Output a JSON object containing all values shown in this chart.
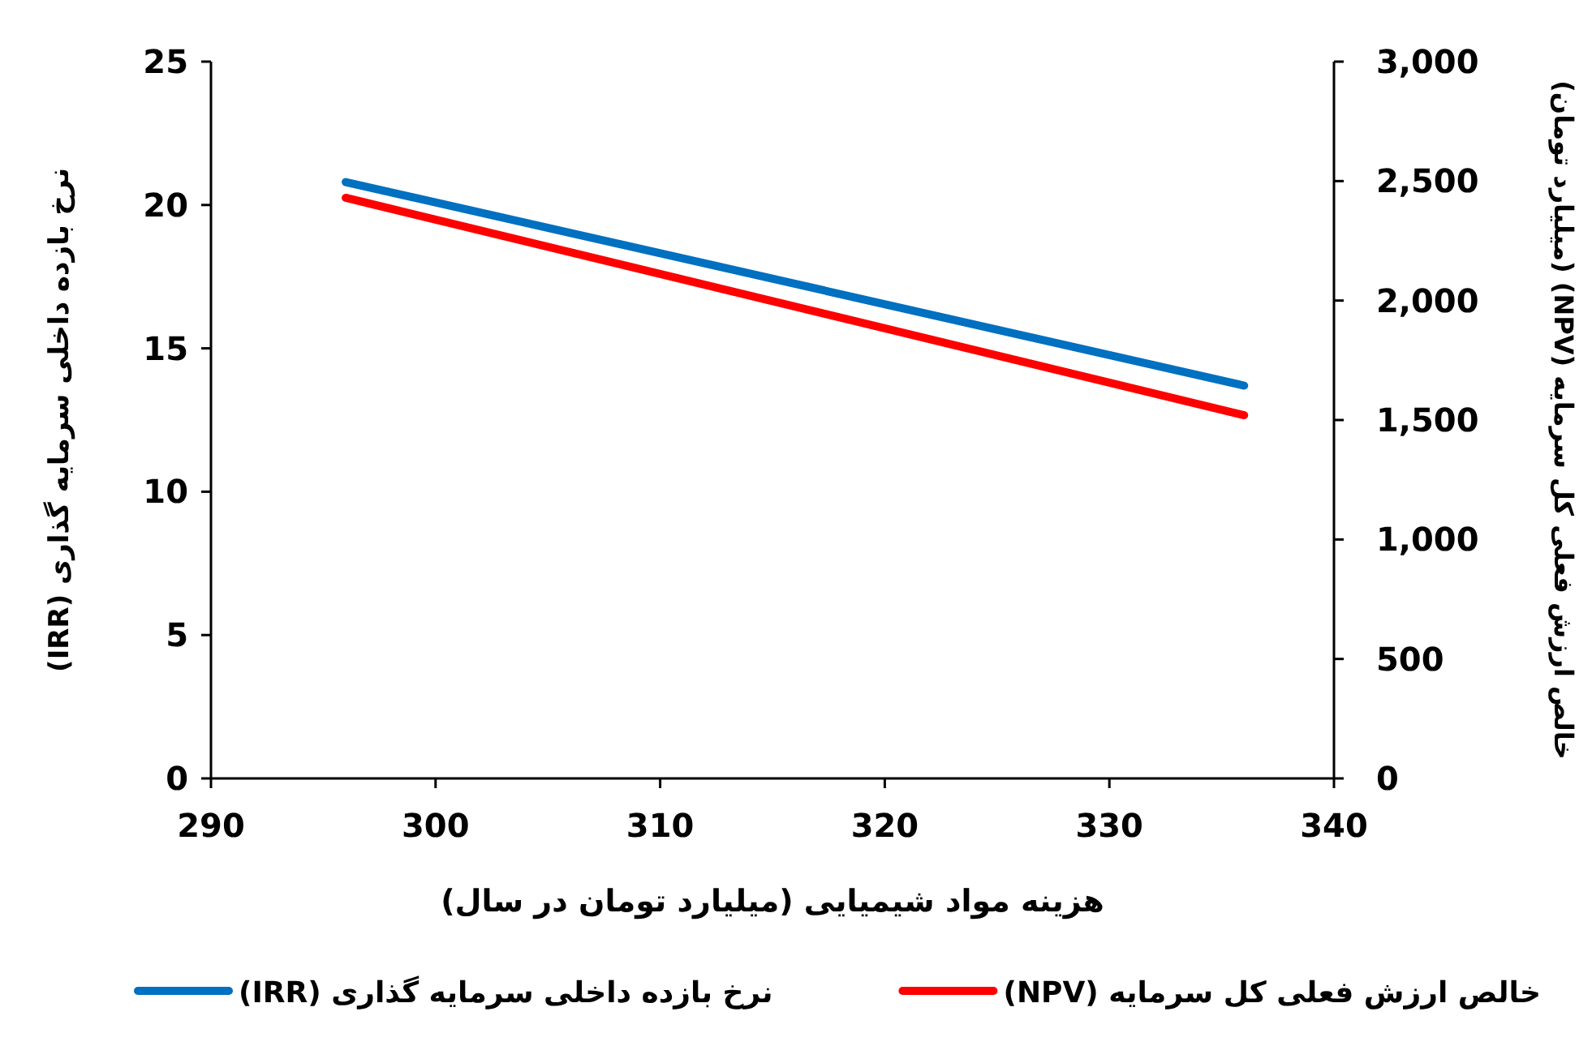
{
  "chart_data": {
    "type": "line",
    "xlabel": "هزینه مواد شیمیایی (میلیارد تومان در سال)",
    "ylabel": "نرخ بازده داخلی سرمایه گذاری (IRR)",
    "y2label": "خالص ارزش فعلی کل سرمایه (NPV) (میلیارد تومان)",
    "xlim": [
      290,
      340
    ],
    "xticks": [
      290,
      300,
      310,
      320,
      330,
      340
    ],
    "ylim": [
      0,
      25
    ],
    "yticks": [
      0,
      5,
      10,
      15,
      20,
      25
    ],
    "y2lim": [
      0,
      3000
    ],
    "y2ticks": [
      0,
      500,
      {
        "value": 1000,
        "label": "1,000"
      },
      {
        "value": 1500,
        "label": "1,500"
      },
      {
        "value": 2000,
        "label": "2,000"
      },
      {
        "value": 2500,
        "label": "2,500"
      },
      {
        "value": 3000,
        "label": "3,000"
      }
    ],
    "x": [
      296,
      336
    ],
    "grid": false,
    "legend": "bottom",
    "marker": "none",
    "line_style": "solid",
    "series": [
      {
        "name": "نرخ بازده داخلی سرمایه گذاری (IRR)",
        "color": "#0070c0",
        "values": [
          20.8,
          13.7
        ]
      },
      {
        "name": "خالص ارزش فعلی کل سرمایه (NPV)",
        "color": "#ff0000",
        "axis": "y2",
        "values": [
          2430,
          1520
        ]
      }
    ]
  }
}
